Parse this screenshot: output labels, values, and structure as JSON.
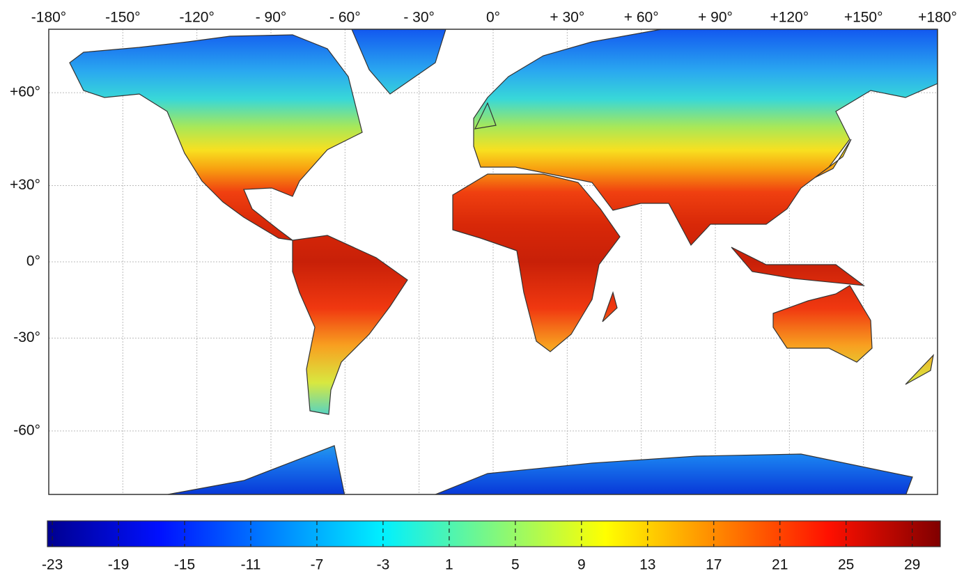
{
  "chart_data": {
    "type": "map",
    "projection": "miller",
    "lonlim": [
      -180,
      180
    ],
    "latlim": [
      -75,
      75
    ],
    "lonticks": [
      {
        "value": -180,
        "label": "-180°"
      },
      {
        "value": -150,
        "label": "-150°"
      },
      {
        "value": -120,
        "label": "-120°"
      },
      {
        "value": -90,
        "label": "- 90°"
      },
      {
        "value": -60,
        "label": "- 60°"
      },
      {
        "value": -30,
        "label": "- 30°"
      },
      {
        "value": 0,
        "label": "0°"
      },
      {
        "value": 30,
        "label": "+ 30°"
      },
      {
        "value": 60,
        "label": "+ 60°"
      },
      {
        "value": 90,
        "label": "+ 90°"
      },
      {
        "value": 120,
        "label": "+120°"
      },
      {
        "value": 150,
        "label": "+150°"
      },
      {
        "value": 180,
        "label": "+180°"
      }
    ],
    "latticks": [
      {
        "value": 60,
        "label": "+60°"
      },
      {
        "value": 30,
        "label": "+30°"
      },
      {
        "value": 0,
        "label": "0°"
      },
      {
        "value": -30,
        "label": "-30°"
      },
      {
        "value": -60,
        "label": "-60°"
      }
    ],
    "grid": true,
    "colorbar": {
      "colormap": "jet",
      "clim": [
        -23.3,
        30.7
      ],
      "ticks": [
        -23,
        -19,
        -15,
        -11,
        -7,
        -3,
        1,
        5,
        9,
        13,
        17,
        21,
        25,
        29
      ]
    }
  }
}
